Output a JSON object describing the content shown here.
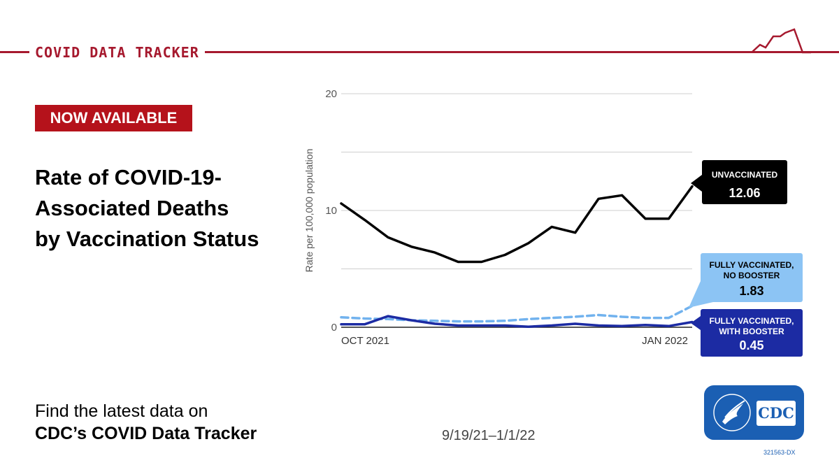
{
  "header": {
    "title": "COVID DATA TRACKER"
  },
  "badge": {
    "label": "NOW AVAILABLE"
  },
  "title_lines": [
    "Rate of COVID-19-",
    "Associated Deaths",
    "by Vaccination Status"
  ],
  "footer": {
    "line1": "Find the latest data on",
    "line2": "CDC’s COVID Data Tracker"
  },
  "date_range": "9/19/21–1/1/22",
  "logo": {
    "text": "CDC"
  },
  "code": "321563-DX",
  "colors": {
    "brand_red": "#a6192e",
    "unvaccinated": "#000000",
    "no_booster": "#71b2ee",
    "with_booster": "#1c2ba3"
  },
  "chart_data": {
    "type": "line",
    "ylabel": "Rate per 100,000 population",
    "ylim": [
      0,
      20
    ],
    "yticks": [
      0,
      10,
      20
    ],
    "gridlines": [
      0,
      5,
      10,
      15,
      20
    ],
    "x": [
      "9/19/21",
      "9/26/21",
      "10/3/21",
      "10/10/21",
      "10/17/21",
      "10/24/21",
      "10/31/21",
      "11/7/21",
      "11/14/21",
      "11/21/21",
      "11/28/21",
      "12/5/21",
      "12/12/21",
      "12/19/21",
      "12/26/21",
      "1/1/22"
    ],
    "xtick_labels": [
      {
        "label": "OCT 2021",
        "at": "9/19/21"
      },
      {
        "label": "JAN 2022",
        "at": "1/1/22"
      }
    ],
    "series": [
      {
        "name": "UNVACCINATED",
        "color": "#000000",
        "dash": false,
        "label_value": "12.06",
        "values": [
          10.6,
          9.2,
          7.7,
          6.9,
          6.4,
          5.6,
          5.6,
          6.2,
          7.2,
          8.6,
          8.1,
          11.0,
          11.3,
          9.3,
          9.3,
          12.06
        ]
      },
      {
        "name": "FULLY VACCINATED, NO BOOSTER",
        "color": "#71b2ee",
        "dash": true,
        "label_value": "1.83",
        "values": [
          0.85,
          0.75,
          0.7,
          0.6,
          0.55,
          0.5,
          0.5,
          0.55,
          0.7,
          0.8,
          0.9,
          1.05,
          0.9,
          0.8,
          0.8,
          1.83
        ]
      },
      {
        "name": "FULLY VACCINATED, WITH BOOSTER",
        "color": "#1c2ba3",
        "dash": false,
        "label_value": "0.45",
        "values": [
          0.25,
          0.25,
          0.95,
          0.6,
          0.3,
          0.15,
          0.15,
          0.15,
          0.05,
          0.15,
          0.3,
          0.15,
          0.1,
          0.2,
          0.1,
          0.45
        ]
      }
    ]
  }
}
